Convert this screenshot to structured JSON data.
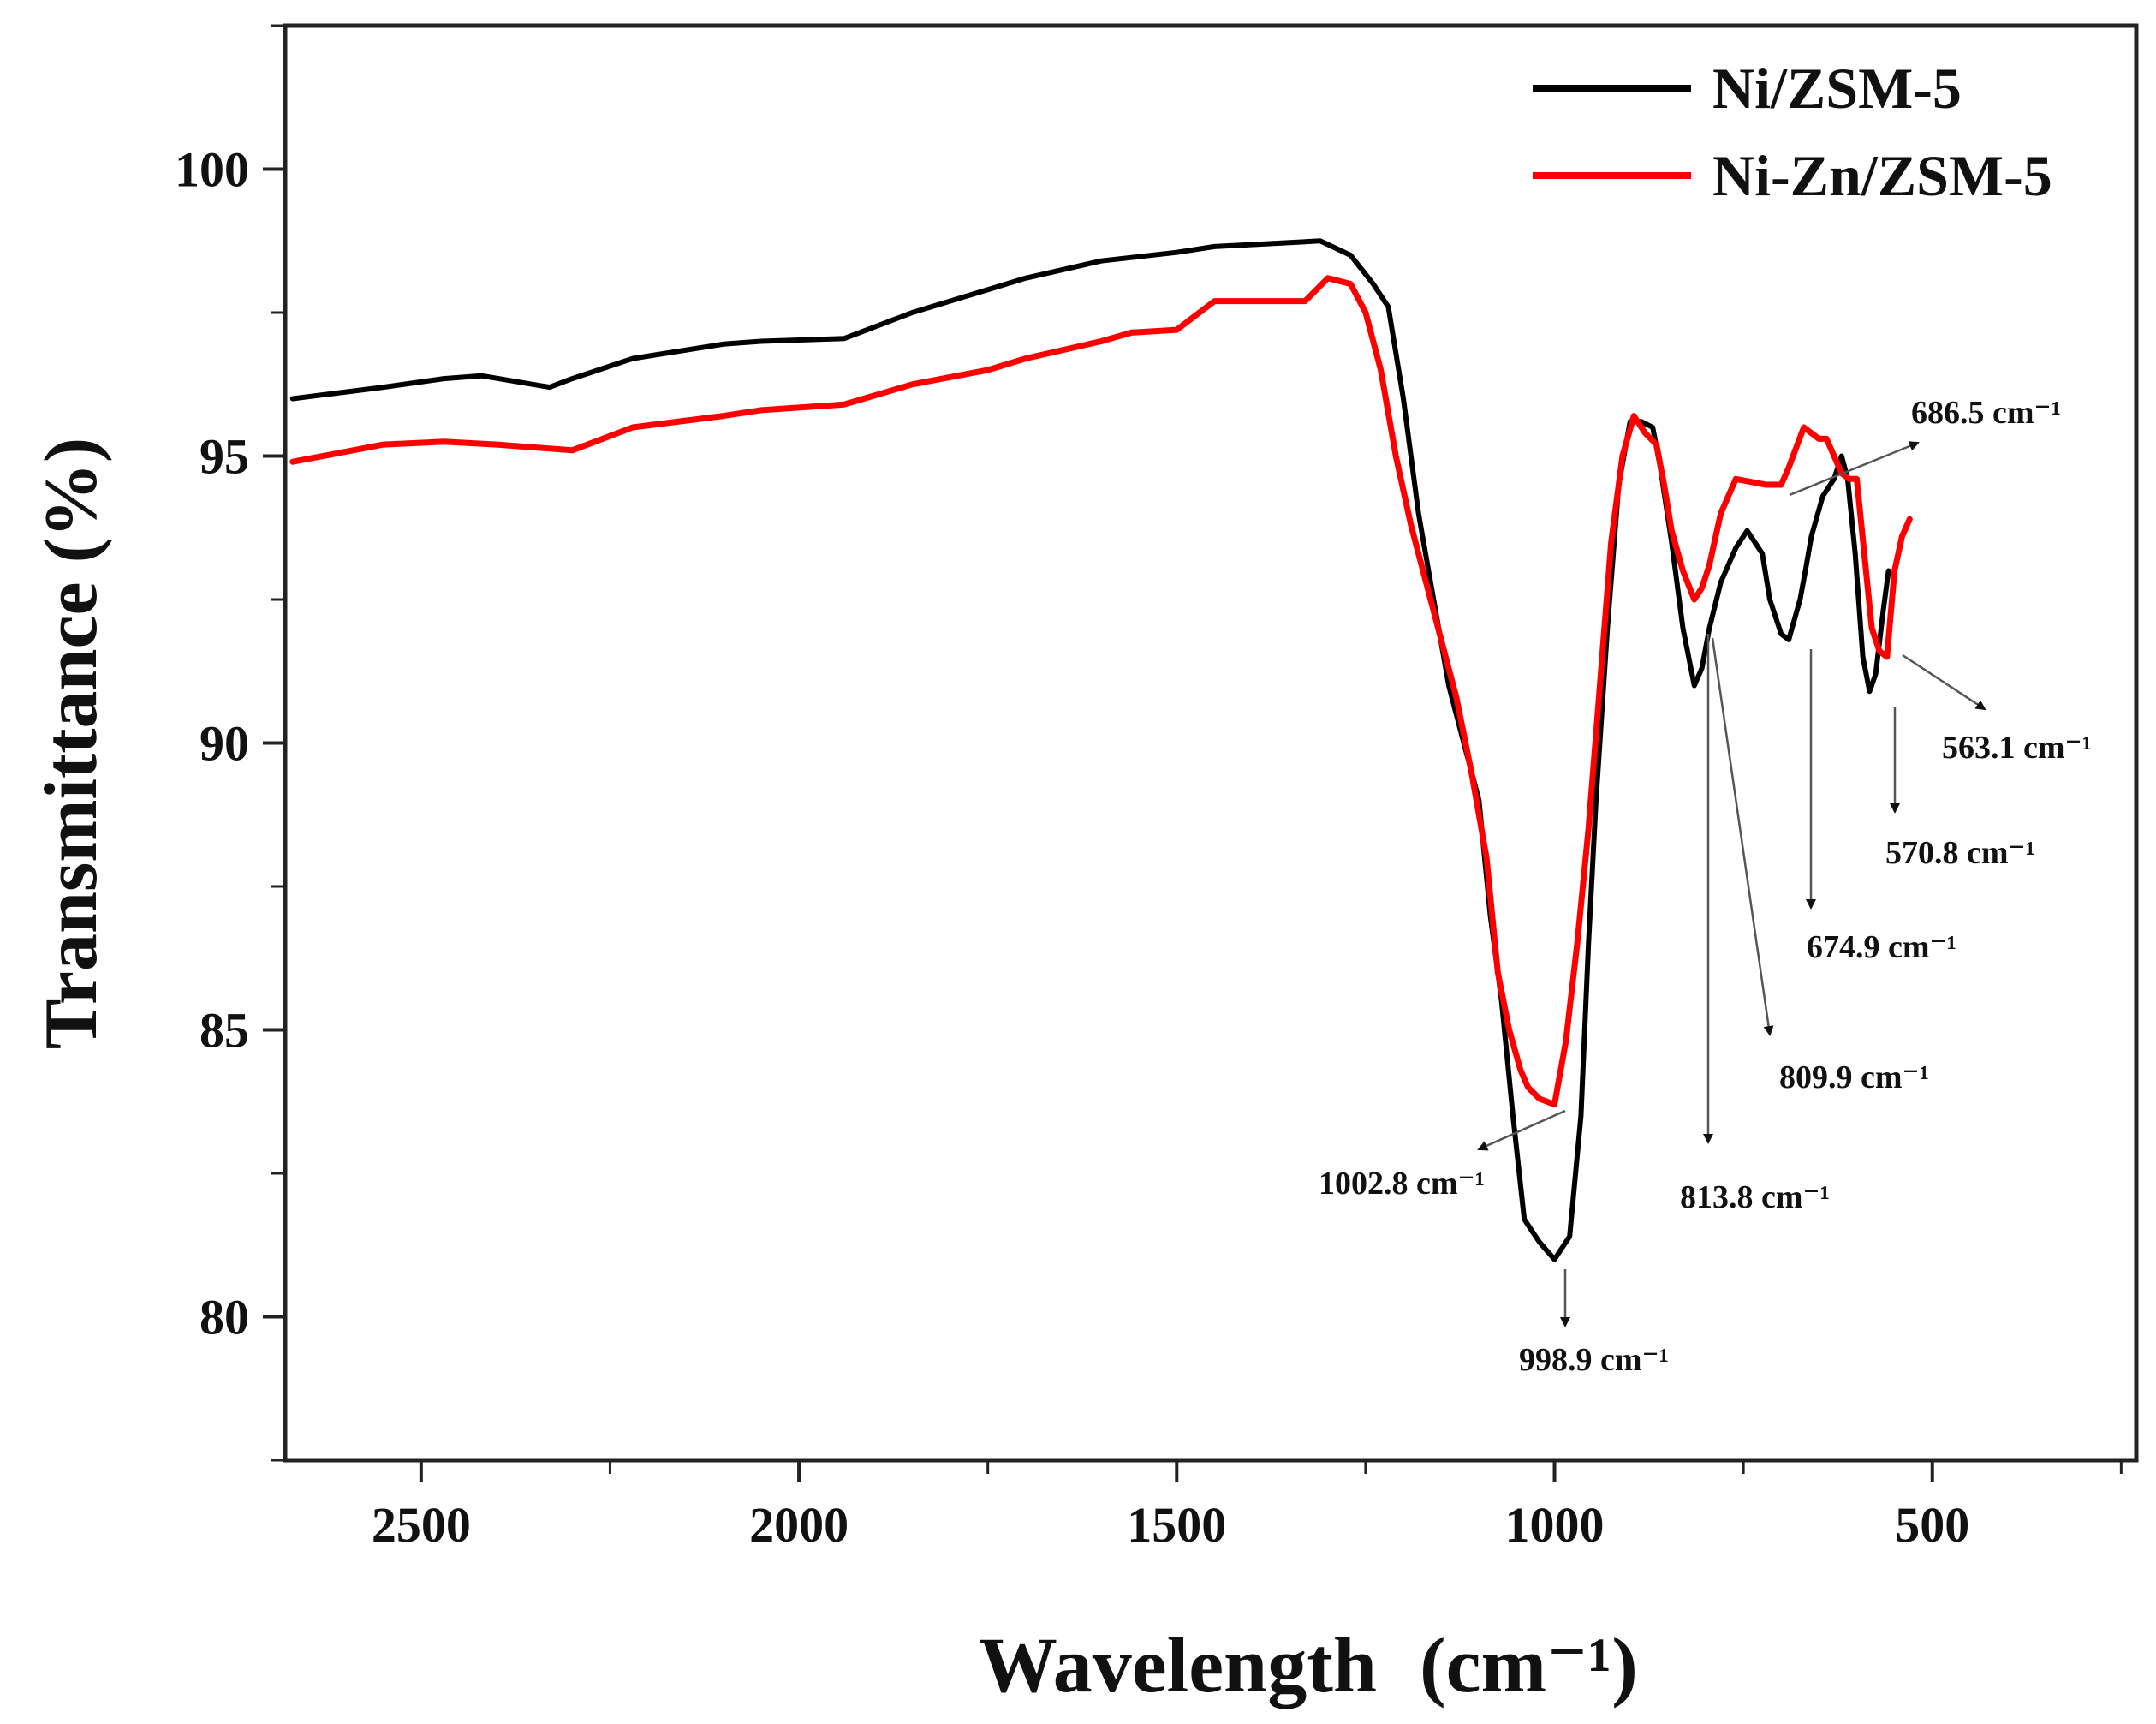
{
  "chart_data": {
    "type": "line",
    "title": "",
    "xlabel": "Wavelength",
    "xlabel_unit": "(cm⁻¹)",
    "ylabel": "Transmittance (%)",
    "xlim": [
      2680,
      230
    ],
    "ylim": [
      77.5,
      102.5
    ],
    "x_ticks": [
      2500,
      2000,
      1500,
      1000,
      500
    ],
    "x_tick_labels": [
      "2500",
      "2000",
      "1500",
      "1000",
      "500"
    ],
    "y_ticks": [
      80,
      85,
      90,
      95,
      100
    ],
    "y_tick_labels": [
      "80",
      "85",
      "90",
      "95",
      "100"
    ],
    "legend_position": "top-right",
    "series": [
      {
        "name": "Ni/ZSM-5",
        "color": "#000000",
        "x": [
          2670,
          2550,
          2470,
          2420,
          2330,
          2300,
          2220,
          2100,
          2050,
          1940,
          1850,
          1750,
          1700,
          1600,
          1500,
          1450,
          1380,
          1310,
          1270,
          1240,
          1220,
          1200,
          1180,
          1160,
          1140,
          1120,
          1100,
          1085,
          1070,
          1055,
          1040,
          1020,
          1000,
          980,
          965,
          955,
          945,
          930,
          915,
          900,
          885,
          870,
          860,
          845,
          830,
          815,
          805,
          795,
          780,
          760,
          745,
          725,
          715,
          700,
          690,
          675,
          668,
          660,
          645,
          630,
          620,
          612,
          602,
          592,
          583,
          575,
          565,
          558
        ],
        "y": [
          96.0,
          96.2,
          96.35,
          96.4,
          96.2,
          96.35,
          96.7,
          96.95,
          97.0,
          97.05,
          97.5,
          97.9,
          98.1,
          98.4,
          98.55,
          98.65,
          98.7,
          98.75,
          98.5,
          98.0,
          97.6,
          96.0,
          94.0,
          92.5,
          91.0,
          90.0,
          89.0,
          87.0,
          85.5,
          83.5,
          81.7,
          81.3,
          81.0,
          81.4,
          83.5,
          86.5,
          89.0,
          92.0,
          94.5,
          95.6,
          95.6,
          95.5,
          94.8,
          93.5,
          92.0,
          91.0,
          91.3,
          92.0,
          92.8,
          93.4,
          93.7,
          93.3,
          92.5,
          91.9,
          91.8,
          92.5,
          93.0,
          93.6,
          94.3,
          94.6,
          95.0,
          94.6,
          93.3,
          91.5,
          90.9,
          91.2,
          92.3,
          93.0
        ]
      },
      {
        "name": "Ni-Zn/ZSM-5",
        "color": "#ff0000",
        "x": [
          2670,
          2550,
          2470,
          2400,
          2300,
          2250,
          2220,
          2100,
          2050,
          1940,
          1850,
          1750,
          1700,
          1600,
          1560,
          1500,
          1450,
          1380,
          1330,
          1300,
          1270,
          1250,
          1230,
          1210,
          1190,
          1170,
          1150,
          1130,
          1110,
          1090,
          1075,
          1060,
          1045,
          1035,
          1020,
          1000,
          985,
          970,
          955,
          940,
          925,
          910,
          895,
          880,
          865,
          855,
          845,
          830,
          815,
          805,
          795,
          780,
          760,
          740,
          720,
          700,
          690,
          670,
          650,
          640,
          630,
          620,
          610,
          600,
          590,
          580,
          570,
          560,
          550,
          540,
          530
        ],
        "y": [
          94.9,
          95.2,
          95.25,
          95.2,
          95.1,
          95.35,
          95.5,
          95.7,
          95.8,
          95.9,
          96.25,
          96.5,
          96.7,
          97.0,
          97.15,
          97.2,
          97.7,
          97.7,
          97.7,
          98.1,
          98.0,
          97.5,
          96.5,
          95.0,
          93.8,
          92.8,
          91.8,
          90.8,
          89.5,
          88.0,
          86.0,
          85.0,
          84.3,
          84.0,
          83.8,
          83.7,
          84.8,
          86.5,
          88.5,
          91.0,
          93.5,
          95.0,
          95.7,
          95.4,
          95.2,
          94.5,
          93.7,
          93.0,
          92.5,
          92.7,
          93.1,
          94.0,
          94.6,
          94.55,
          94.5,
          94.5,
          94.8,
          95.5,
          95.3,
          95.3,
          95.0,
          94.7,
          94.6,
          94.6,
          93.3,
          92.0,
          91.6,
          91.5,
          93.0,
          93.6,
          93.9
        ]
      }
    ],
    "annotations": [
      {
        "text": "686.5 cm⁻¹",
        "x": 686.5
      },
      {
        "text": "563.1 cm⁻¹",
        "x": 563.1
      },
      {
        "text": "570.8 cm⁻¹",
        "x": 570.8
      },
      {
        "text": "674.9 cm⁻¹",
        "x": 674.9
      },
      {
        "text": "809.9 cm⁻¹",
        "x": 809.9
      },
      {
        "text": "813.8 cm⁻¹",
        "x": 813.8
      },
      {
        "text": "1002.8 cm⁻¹",
        "x": 1002.8
      },
      {
        "text": "998.9 cm⁻¹",
        "x": 998.9
      }
    ]
  }
}
